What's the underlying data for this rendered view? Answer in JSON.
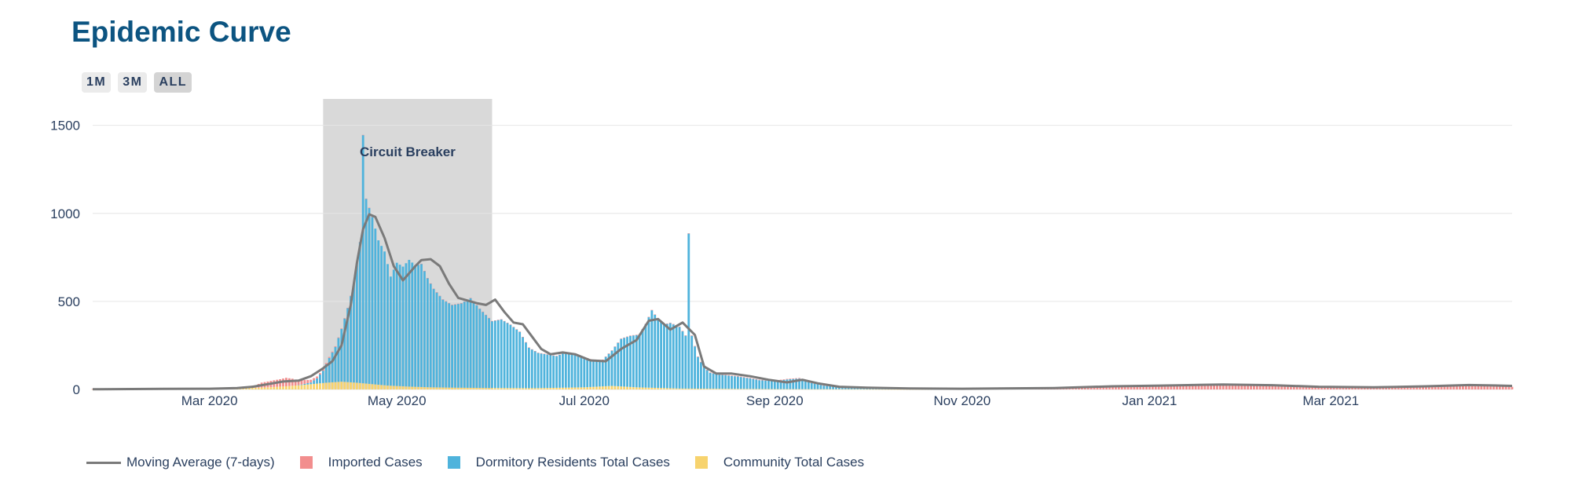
{
  "title": "Epidemic Curve",
  "range_buttons": [
    {
      "label": "1M",
      "active": false
    },
    {
      "label": "3M",
      "active": false
    },
    {
      "label": "ALL",
      "active": true
    }
  ],
  "colors": {
    "title": "#0c5481",
    "imported": "#f28e8e",
    "dormitory": "#4fb3dc",
    "community": "#f7d36e",
    "moving_average": "#7a7a7a",
    "shade": "#d9d9d9"
  },
  "chart_data": {
    "type": "bar",
    "barmode": "stack",
    "title": "Epidemic Curve",
    "xlabel": "",
    "ylabel": "",
    "x_range": [
      "2020-01-23",
      "2021-04-29"
    ],
    "ylim": [
      0,
      1650
    ],
    "grid": true,
    "legend_position": "bottom",
    "x_ticks": [
      {
        "date": "2020-03-01",
        "label": "Mar 2020"
      },
      {
        "date": "2020-05-01",
        "label": "May 2020"
      },
      {
        "date": "2020-07-01",
        "label": "Jul 2020"
      },
      {
        "date": "2020-09-01",
        "label": "Sep 2020"
      },
      {
        "date": "2020-11-01",
        "label": "Nov 2020"
      },
      {
        "date": "2021-01-01",
        "label": "Jan 2021"
      },
      {
        "date": "2021-03-01",
        "label": "Mar 2021"
      }
    ],
    "y_ticks": [
      {
        "value": 0,
        "label": "0"
      },
      {
        "value": 500,
        "label": "500"
      },
      {
        "value": 1000,
        "label": "1000"
      },
      {
        "value": 1500,
        "label": "1500"
      }
    ],
    "shaded_period": {
      "label": "Circuit Breaker",
      "start": "2020-04-07",
      "end": "2020-06-01"
    },
    "series": [
      {
        "name": "Imported Cases",
        "kind": "bar",
        "points": [
          [
            "2020-01-23",
            1
          ],
          [
            "2020-02-15",
            1
          ],
          [
            "2020-03-01",
            2
          ],
          [
            "2020-03-08",
            5
          ],
          [
            "2020-03-13",
            10
          ],
          [
            "2020-03-16",
            14
          ],
          [
            "2020-03-18",
            28
          ],
          [
            "2020-03-20",
            33
          ],
          [
            "2020-03-22",
            38
          ],
          [
            "2020-03-24",
            42
          ],
          [
            "2020-03-26",
            48
          ],
          [
            "2020-03-28",
            40
          ],
          [
            "2020-03-30",
            28
          ],
          [
            "2020-04-02",
            18
          ],
          [
            "2020-04-06",
            8
          ],
          [
            "2020-04-12",
            3
          ],
          [
            "2020-04-25",
            0
          ],
          [
            "2020-06-01",
            1
          ],
          [
            "2020-07-01",
            2
          ],
          [
            "2020-09-01",
            3
          ],
          [
            "2020-10-01",
            4
          ],
          [
            "2020-10-25",
            5
          ],
          [
            "2020-11-15",
            6
          ],
          [
            "2020-12-01",
            8
          ],
          [
            "2020-12-10",
            12
          ],
          [
            "2020-12-20",
            16
          ],
          [
            "2021-01-01",
            20
          ],
          [
            "2021-01-15",
            24
          ],
          [
            "2021-01-25",
            22
          ],
          [
            "2021-02-05",
            20
          ],
          [
            "2021-02-15",
            16
          ],
          [
            "2021-02-25",
            13
          ],
          [
            "2021-03-10",
            12
          ],
          [
            "2021-03-25",
            14
          ],
          [
            "2021-04-05",
            17
          ],
          [
            "2021-04-15",
            20
          ],
          [
            "2021-04-25",
            16
          ],
          [
            "2021-04-29",
            15
          ]
        ]
      },
      {
        "name": "Dormitory Residents Total Cases",
        "kind": "bar",
        "points": [
          [
            "2020-01-23",
            0
          ],
          [
            "2020-03-29",
            0
          ],
          [
            "2020-03-31",
            3
          ],
          [
            "2020-04-03",
            10
          ],
          [
            "2020-04-05",
            30
          ],
          [
            "2020-04-07",
            70
          ],
          [
            "2020-04-09",
            140
          ],
          [
            "2020-04-11",
            200
          ],
          [
            "2020-04-13",
            300
          ],
          [
            "2020-04-15",
            420
          ],
          [
            "2020-04-17",
            560
          ],
          [
            "2020-04-19",
            800
          ],
          [
            "2020-04-20",
            1410
          ],
          [
            "2020-04-21",
            1050
          ],
          [
            "2020-04-23",
            950
          ],
          [
            "2020-04-25",
            820
          ],
          [
            "2020-04-27",
            760
          ],
          [
            "2020-04-29",
            620
          ],
          [
            "2020-05-01",
            700
          ],
          [
            "2020-05-03",
            680
          ],
          [
            "2020-05-05",
            720
          ],
          [
            "2020-05-07",
            690
          ],
          [
            "2020-05-09",
            700
          ],
          [
            "2020-05-11",
            620
          ],
          [
            "2020-05-13",
            560
          ],
          [
            "2020-05-16",
            500
          ],
          [
            "2020-05-19",
            470
          ],
          [
            "2020-05-22",
            480
          ],
          [
            "2020-05-25",
            510
          ],
          [
            "2020-05-28",
            450
          ],
          [
            "2020-06-01",
            380
          ],
          [
            "2020-06-04",
            390
          ],
          [
            "2020-06-07",
            360
          ],
          [
            "2020-06-10",
            320
          ],
          [
            "2020-06-13",
            230
          ],
          [
            "2020-06-16",
            200
          ],
          [
            "2020-06-19",
            190
          ],
          [
            "2020-06-22",
            180
          ],
          [
            "2020-06-25",
            200
          ],
          [
            "2020-06-28",
            190
          ],
          [
            "2020-07-01",
            170
          ],
          [
            "2020-07-04",
            150
          ],
          [
            "2020-07-07",
            150
          ],
          [
            "2020-07-10",
            200
          ],
          [
            "2020-07-13",
            270
          ],
          [
            "2020-07-16",
            290
          ],
          [
            "2020-07-19",
            300
          ],
          [
            "2020-07-21",
            360
          ],
          [
            "2020-07-23",
            440
          ],
          [
            "2020-07-25",
            390
          ],
          [
            "2020-07-27",
            360
          ],
          [
            "2020-07-29",
            370
          ],
          [
            "2020-08-01",
            350
          ],
          [
            "2020-08-03",
            300
          ],
          [
            "2020-08-04",
            880
          ],
          [
            "2020-08-05",
            300
          ],
          [
            "2020-08-07",
            180
          ],
          [
            "2020-08-09",
            120
          ],
          [
            "2020-08-11",
            90
          ],
          [
            "2020-08-14",
            80
          ],
          [
            "2020-08-17",
            75
          ],
          [
            "2020-08-20",
            70
          ],
          [
            "2020-08-24",
            60
          ],
          [
            "2020-08-27",
            50
          ],
          [
            "2020-09-01",
            45
          ],
          [
            "2020-09-05",
            55
          ],
          [
            "2020-09-09",
            60
          ],
          [
            "2020-09-13",
            35
          ],
          [
            "2020-09-17",
            20
          ],
          [
            "2020-09-22",
            12
          ],
          [
            "2020-09-28",
            8
          ],
          [
            "2020-10-05",
            4
          ],
          [
            "2020-10-15",
            2
          ],
          [
            "2020-10-25",
            1
          ],
          [
            "2020-11-05",
            0
          ],
          [
            "2021-04-29",
            0
          ]
        ]
      },
      {
        "name": "Community Total Cases",
        "kind": "bar",
        "points": [
          [
            "2020-01-23",
            1
          ],
          [
            "2020-02-05",
            3
          ],
          [
            "2020-02-15",
            2
          ],
          [
            "2020-03-01",
            3
          ],
          [
            "2020-03-10",
            6
          ],
          [
            "2020-03-20",
            12
          ],
          [
            "2020-03-26",
            18
          ],
          [
            "2020-04-02",
            28
          ],
          [
            "2020-04-08",
            38
          ],
          [
            "2020-04-13",
            44
          ],
          [
            "2020-04-18",
            38
          ],
          [
            "2020-04-23",
            30
          ],
          [
            "2020-04-28",
            22
          ],
          [
            "2020-05-05",
            16
          ],
          [
            "2020-05-12",
            12
          ],
          [
            "2020-05-20",
            10
          ],
          [
            "2020-06-01",
            8
          ],
          [
            "2020-06-15",
            7
          ],
          [
            "2020-07-01",
            12
          ],
          [
            "2020-07-10",
            20
          ],
          [
            "2020-07-18",
            12
          ],
          [
            "2020-08-01",
            5
          ],
          [
            "2020-09-01",
            2
          ],
          [
            "2020-10-01",
            1
          ],
          [
            "2020-11-01",
            0
          ],
          [
            "2021-04-29",
            0
          ]
        ]
      },
      {
        "name": "Moving Average (7-days)",
        "kind": "line",
        "points": [
          [
            "2020-01-23",
            1
          ],
          [
            "2020-02-15",
            3
          ],
          [
            "2020-03-01",
            4
          ],
          [
            "2020-03-10",
            8
          ],
          [
            "2020-03-15",
            15
          ],
          [
            "2020-03-20",
            30
          ],
          [
            "2020-03-25",
            45
          ],
          [
            "2020-03-30",
            50
          ],
          [
            "2020-04-03",
            75
          ],
          [
            "2020-04-07",
            120
          ],
          [
            "2020-04-10",
            160
          ],
          [
            "2020-04-13",
            250
          ],
          [
            "2020-04-16",
            480
          ],
          [
            "2020-04-18",
            720
          ],
          [
            "2020-04-20",
            910
          ],
          [
            "2020-04-22",
            995
          ],
          [
            "2020-04-24",
            980
          ],
          [
            "2020-04-27",
            860
          ],
          [
            "2020-04-30",
            700
          ],
          [
            "2020-05-03",
            620
          ],
          [
            "2020-05-05",
            660
          ],
          [
            "2020-05-07",
            700
          ],
          [
            "2020-05-09",
            735
          ],
          [
            "2020-05-12",
            740
          ],
          [
            "2020-05-15",
            700
          ],
          [
            "2020-05-18",
            600
          ],
          [
            "2020-05-21",
            520
          ],
          [
            "2020-05-24",
            505
          ],
          [
            "2020-05-27",
            490
          ],
          [
            "2020-05-30",
            480
          ],
          [
            "2020-06-02",
            510
          ],
          [
            "2020-06-05",
            440
          ],
          [
            "2020-06-08",
            380
          ],
          [
            "2020-06-11",
            370
          ],
          [
            "2020-06-14",
            300
          ],
          [
            "2020-06-17",
            230
          ],
          [
            "2020-06-20",
            200
          ],
          [
            "2020-06-24",
            210
          ],
          [
            "2020-06-28",
            200
          ],
          [
            "2020-07-03",
            165
          ],
          [
            "2020-07-08",
            160
          ],
          [
            "2020-07-13",
            230
          ],
          [
            "2020-07-18",
            280
          ],
          [
            "2020-07-22",
            390
          ],
          [
            "2020-07-25",
            400
          ],
          [
            "2020-07-29",
            340
          ],
          [
            "2020-08-02",
            380
          ],
          [
            "2020-08-06",
            310
          ],
          [
            "2020-08-09",
            130
          ],
          [
            "2020-08-13",
            90
          ],
          [
            "2020-08-18",
            90
          ],
          [
            "2020-08-24",
            75
          ],
          [
            "2020-08-30",
            55
          ],
          [
            "2020-09-05",
            40
          ],
          [
            "2020-09-10",
            55
          ],
          [
            "2020-09-15",
            35
          ],
          [
            "2020-09-22",
            15
          ],
          [
            "2020-10-01",
            10
          ],
          [
            "2020-10-15",
            6
          ],
          [
            "2020-11-01",
            4
          ],
          [
            "2020-12-01",
            8
          ],
          [
            "2020-12-20",
            18
          ],
          [
            "2021-01-05",
            22
          ],
          [
            "2021-01-25",
            28
          ],
          [
            "2021-02-10",
            24
          ],
          [
            "2021-02-25",
            15
          ],
          [
            "2021-03-15",
            12
          ],
          [
            "2021-04-01",
            18
          ],
          [
            "2021-04-15",
            25
          ],
          [
            "2021-04-25",
            22
          ],
          [
            "2021-04-29",
            20
          ]
        ]
      }
    ],
    "legend": [
      {
        "label": "Moving Average (7-days)",
        "marker": "line",
        "color": "#7a7a7a"
      },
      {
        "label": "Imported Cases",
        "marker": "box",
        "color": "#f28e8e"
      },
      {
        "label": "Dormitory Residents Total Cases",
        "marker": "box",
        "color": "#4fb3dc"
      },
      {
        "label": "Community Total Cases",
        "marker": "box",
        "color": "#f7d36e"
      }
    ]
  }
}
